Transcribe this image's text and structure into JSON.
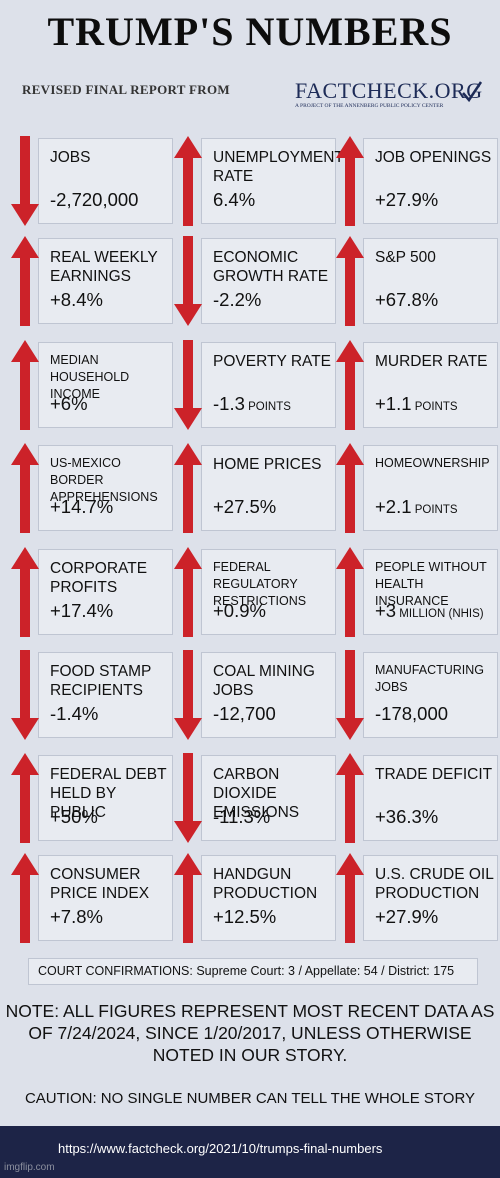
{
  "header": {
    "title": "TRUMP'S NUMBERS",
    "subtitle": "REVISED FINAL REPORT  FROM",
    "logo_name": "FACTCHECK.ORG",
    "logo_tagline": "A PROJECT OF THE ANNENBERG PUBLIC POLICY CENTER"
  },
  "colors": {
    "arrow": "#cc2229",
    "footer": "#1d2447",
    "box": "#e8ebf1"
  },
  "stats": [
    {
      "label": "JOBS",
      "value": "-2,720,000",
      "unit": "",
      "dir": "down",
      "small": false
    },
    {
      "label": "UNEMPLOYMENT RATE",
      "value": "6.4%",
      "unit": "",
      "dir": "up",
      "small": false
    },
    {
      "label": "JOB OPENINGS",
      "value": "+27.9%",
      "unit": "",
      "dir": "up",
      "small": false
    },
    {
      "label": "REAL WEEKLY EARNINGS",
      "value": "+8.4%",
      "unit": "",
      "dir": "up",
      "small": false
    },
    {
      "label": "ECONOMIC GROWTH RATE",
      "value": "-2.2%",
      "unit": "",
      "dir": "down",
      "small": false
    },
    {
      "label": "S&P 500",
      "value": "+67.8%",
      "unit": "",
      "dir": "up",
      "small": false
    },
    {
      "label": "MEDIAN HOUSEHOLD INCOME",
      "value": "+6%",
      "unit": "",
      "dir": "up",
      "small": true
    },
    {
      "label": "POVERTY RATE",
      "value": "-1.3",
      "unit": "POINTS",
      "dir": "down",
      "small": false
    },
    {
      "label": "MURDER RATE",
      "value": "+1.1",
      "unit": "POINTS",
      "dir": "up",
      "small": false
    },
    {
      "label": "US-MEXICO BORDER APPREHENSIONS",
      "value": "+14.7%",
      "unit": "",
      "dir": "up",
      "small": true
    },
    {
      "label": "HOME PRICES",
      "value": "+27.5%",
      "unit": "",
      "dir": "up",
      "small": false
    },
    {
      "label": "HOMEOWNERSHIP",
      "value": "+2.1",
      "unit": "POINTS",
      "dir": "up",
      "small": true
    },
    {
      "label": "CORPORATE PROFITS",
      "value": "+17.4%",
      "unit": "",
      "dir": "up",
      "small": false
    },
    {
      "label": "FEDERAL REGULATORY RESTRICTIONS",
      "value": "+0.9%",
      "unit": "",
      "dir": "up",
      "small": true
    },
    {
      "label": "PEOPLE WITHOUT HEALTH INSURANCE",
      "value": "+3",
      "unit": "MILLION (NHIS)",
      "dir": "up",
      "small": true
    },
    {
      "label": "FOOD STAMP RECIPIENTS",
      "value": "-1.4%",
      "unit": "",
      "dir": "down",
      "small": false
    },
    {
      "label": "COAL MINING JOBS",
      "value": "-12,700",
      "unit": "",
      "dir": "down",
      "small": false
    },
    {
      "label": "MANUFACTURING JOBS",
      "value": "-178,000",
      "unit": "",
      "dir": "down",
      "small": true
    },
    {
      "label": "FEDERAL DEBT HELD BY PUBLIC",
      "value": "+50%",
      "unit": "",
      "dir": "up",
      "small": false
    },
    {
      "label": "CARBON DIOXIDE EMISSIONS",
      "value": "-11.3%",
      "unit": "",
      "dir": "down",
      "small": false
    },
    {
      "label": "TRADE DEFICIT",
      "value": "+36.3%",
      "unit": "",
      "dir": "up",
      "small": false
    },
    {
      "label": "CONSUMER PRICE INDEX",
      "value": "+7.8%",
      "unit": "",
      "dir": "up",
      "small": false
    },
    {
      "label": "HANDGUN PRODUCTION",
      "value": "+12.5%",
      "unit": "",
      "dir": "up",
      "small": false
    },
    {
      "label": "U.S. CRUDE OIL PRODUCTION",
      "value": "+27.9%",
      "unit": "",
      "dir": "up",
      "small": false
    }
  ],
  "court": "COURT CONFIRMATIONS: Supreme Court: 3 / Appellate: 54 / District: 175",
  "note": "NOTE:  ALL FIGURES REPRESENT MOST RECENT DATA AS OF 7/24/2024, SINCE 1/20/2017, UNLESS OTHERWISE NOTED IN OUR STORY.",
  "caution": "CAUTION: NO SINGLE NUMBER CAN TELL THE WHOLE STORY",
  "footer_url": "https://www.factcheck.org/2021/10/trumps-final-numbers",
  "watermark": "imgflip.com"
}
